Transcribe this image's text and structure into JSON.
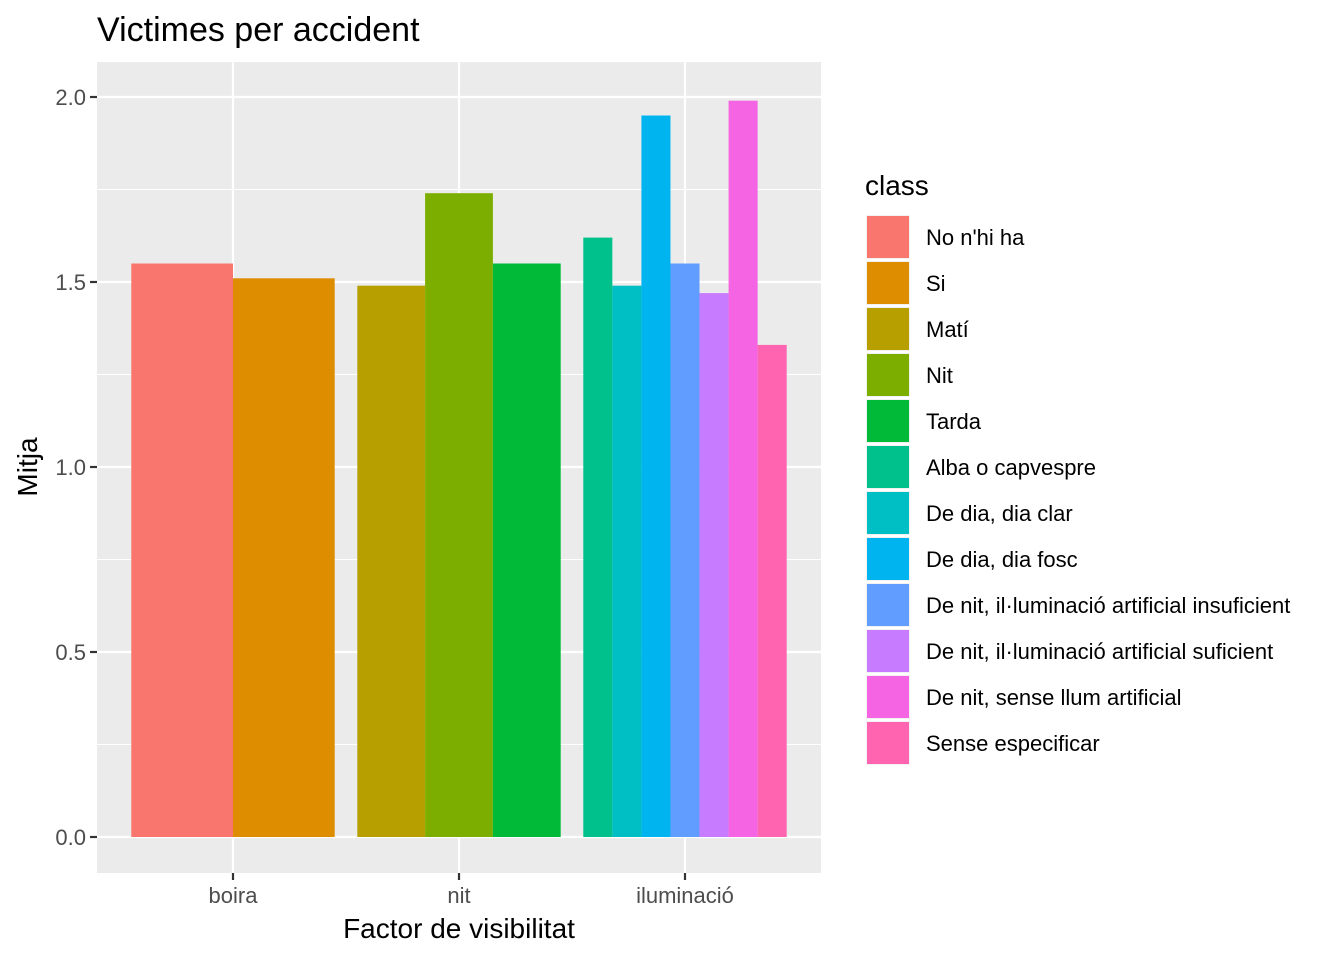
{
  "chart_data": {
    "type": "bar",
    "title": "Victimes per accident",
    "xlabel": "Factor de visibilitat",
    "ylabel": "Mitja",
    "ylim": [
      0,
      2.1
    ],
    "yticks": [
      "0.0",
      "0.5",
      "1.0",
      "1.5",
      "2.0"
    ],
    "categories": [
      "boira",
      "nit",
      "iluminació"
    ],
    "legend": {
      "title": "class",
      "placement": "right",
      "items": [
        {
          "label": "No n'hi ha",
          "color": "#F8766D"
        },
        {
          "label": "Si",
          "color": "#DE8C00"
        },
        {
          "label": "Matí",
          "color": "#B79F00"
        },
        {
          "label": "Nit",
          "color": "#7CAE00"
        },
        {
          "label": "Tarda",
          "color": "#00BA38"
        },
        {
          "label": "Alba o capvespre",
          "color": "#00C08B"
        },
        {
          "label": "De dia, dia clar",
          "color": "#00BFC4"
        },
        {
          "label": "De dia, dia fosc",
          "color": "#00B4F0"
        },
        {
          "label": "De nit, il·luminació artificial insuficient",
          "color": "#619CFF"
        },
        {
          "label": "De nit, il·luminació artificial suficient",
          "color": "#C77CFF"
        },
        {
          "label": "De nit, sense llum artificial",
          "color": "#F564E3"
        },
        {
          "label": "Sense especificar",
          "color": "#FF64B0"
        }
      ]
    },
    "groups": [
      {
        "category": "boira",
        "bars": [
          {
            "class": "No n'hi ha",
            "value": 1.55
          },
          {
            "class": "Si",
            "value": 1.51
          }
        ]
      },
      {
        "category": "nit",
        "bars": [
          {
            "class": "Matí",
            "value": 1.49
          },
          {
            "class": "Nit",
            "value": 1.74
          },
          {
            "class": "Tarda",
            "value": 1.55
          }
        ]
      },
      {
        "category": "iluminació",
        "bars": [
          {
            "class": "Alba o capvespre",
            "value": 1.62
          },
          {
            "class": "De dia, dia clar",
            "value": 1.49
          },
          {
            "class": "De dia, dia fosc",
            "value": 1.95
          },
          {
            "class": "De nit, il·luminació artificial insuficient",
            "value": 1.55
          },
          {
            "class": "De nit, il·luminació artificial suficient",
            "value": 1.47
          },
          {
            "class": "De nit, sense llum artificial",
            "value": 1.99
          },
          {
            "class": "Sense especificar",
            "value": 1.33
          }
        ]
      }
    ],
    "grid": true,
    "panel_background": "#EBEBEB"
  }
}
